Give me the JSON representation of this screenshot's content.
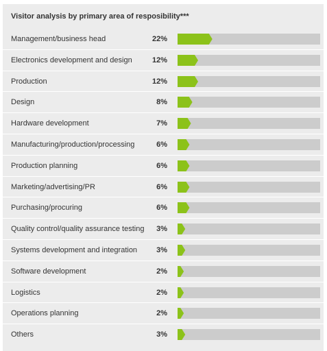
{
  "colors": {
    "bar_fill": "#8cc21a",
    "track_fill": "#cccccc",
    "panel_background": "#ececec"
  },
  "chart_data": {
    "type": "bar",
    "orientation": "horizontal",
    "title": "Visitor analysis by primary area of resposibility***",
    "xlabel": "",
    "ylabel": "",
    "xlim": [
      0,
      100
    ],
    "grid": false,
    "legend": "none",
    "categories": [
      "Management/business head",
      "Electronics development and design",
      "Production",
      "Design",
      "Hardware development",
      "Manufacturing/production/processing",
      "Production planning",
      "Marketing/advertising/PR",
      "Purchasing/procuring",
      "Quality control/quality assurance testing",
      "Systems development and integration",
      "Software development",
      "Logistics",
      "Operations planning",
      "Others"
    ],
    "values": [
      22,
      12,
      12,
      8,
      7,
      6,
      6,
      6,
      6,
      3,
      3,
      2,
      2,
      2,
      3
    ],
    "value_labels": [
      "22%",
      "12%",
      "12%",
      "8%",
      "7%",
      "6%",
      "6%",
      "6%",
      "6%",
      "3%",
      "3%",
      "2%",
      "2%",
      "2%",
      "3%"
    ]
  }
}
